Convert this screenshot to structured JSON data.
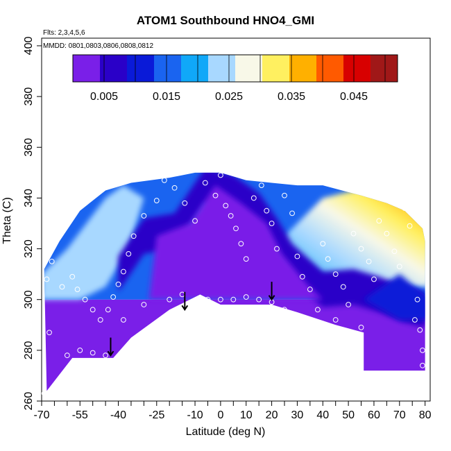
{
  "chart_data": {
    "type": "heatmap",
    "title": "ATOM1 Southbound HNO4_GMI",
    "flights_note": "Flts: 2,3,4,5,6",
    "dates_note": "MMDD: 0801,0803,0806,0808,0812",
    "xlabel": "Latitude (deg N)",
    "ylabel": "Theta (C)",
    "xlim": [
      -70,
      82
    ],
    "ylim": [
      260,
      403
    ],
    "x_tick_labels": [
      "-70",
      "-55",
      "-40",
      "-25",
      "-10",
      "0",
      "10",
      "20",
      "30",
      "40",
      "50",
      "60",
      "70",
      "80"
    ],
    "x_tick_values": [
      -70,
      -55,
      -40,
      -25,
      -10,
      0,
      10,
      20,
      30,
      40,
      50,
      60,
      70,
      80
    ],
    "x_minor_ticks": [
      -65,
      -60,
      -50,
      -45,
      -35,
      -30,
      -20,
      -15,
      -5,
      5,
      15,
      25,
      35,
      45,
      55,
      65,
      75
    ],
    "y_tick_labels": [
      "260",
      "280",
      "300",
      "320",
      "340",
      "360",
      "380",
      "400"
    ],
    "y_tick_values": [
      260,
      280,
      300,
      320,
      340,
      360,
      380,
      400
    ],
    "colorbar": {
      "range": [
        0,
        0.052
      ],
      "labels": [
        "0.005",
        "0.015",
        "0.025",
        "0.035",
        "0.045"
      ],
      "label_values": [
        0.005,
        0.015,
        0.025,
        0.035,
        0.045
      ],
      "break_step": 0.005,
      "colors": [
        "#7a1fe8",
        "#2a00c8",
        "#0a1ad8",
        "#1a64f0",
        "#10a8f8",
        "#a8d8ff",
        "#f8f8e8",
        "#fff060",
        "#ffb000",
        "#ff5a00",
        "#d80000",
        "#a01818"
      ]
    },
    "top_boundary": [
      [
        -69,
        312
      ],
      [
        -63,
        323
      ],
      [
        -55,
        335
      ],
      [
        -45,
        343
      ],
      [
        -35,
        346
      ],
      [
        -20,
        348
      ],
      [
        -10,
        350
      ],
      [
        0,
        350
      ],
      [
        10,
        347
      ],
      [
        20,
        346
      ],
      [
        30,
        345
      ],
      [
        40,
        345
      ],
      [
        55,
        341
      ],
      [
        65,
        338
      ],
      [
        72,
        335
      ],
      [
        79,
        328
      ],
      [
        80,
        323
      ]
    ],
    "bottom_boundary": [
      [
        80,
        272
      ],
      [
        56,
        272
      ],
      [
        56,
        287
      ],
      [
        45,
        290
      ],
      [
        30,
        295
      ],
      [
        20,
        298
      ],
      [
        0,
        298
      ],
      [
        -8,
        302
      ],
      [
        -20,
        296
      ],
      [
        -35,
        285
      ],
      [
        -42,
        277
      ],
      [
        -58,
        277
      ],
      [
        -68,
        264
      ]
    ],
    "core_trough_points": [
      [
        -40,
        310
      ],
      [
        -30,
        325
      ],
      [
        -18,
        327
      ],
      [
        -6,
        345
      ],
      [
        5,
        342
      ],
      [
        15,
        335
      ],
      [
        22,
        325
      ],
      [
        28,
        315
      ],
      [
        40,
        304
      ],
      [
        52,
        305
      ],
      [
        62,
        302
      ],
      [
        72,
        298
      ],
      [
        80,
        296
      ]
    ],
    "arrows": [
      [
        -43,
        285
      ],
      [
        -14,
        303
      ],
      [
        20,
        307
      ]
    ],
    "observations": [
      [
        -69,
        263
      ],
      [
        -67,
        287
      ],
      [
        -68,
        308
      ],
      [
        -66,
        315
      ],
      [
        -62,
        305
      ],
      [
        -58,
        309
      ],
      [
        -56,
        304
      ],
      [
        -53,
        300
      ],
      [
        -50,
        296
      ],
      [
        -47,
        292
      ],
      [
        -44,
        296
      ],
      [
        -42,
        301
      ],
      [
        -40,
        306
      ],
      [
        -38,
        311
      ],
      [
        -36,
        318
      ],
      [
        -34,
        325
      ],
      [
        -30,
        333
      ],
      [
        -25,
        339
      ],
      [
        -22,
        347
      ],
      [
        -18,
        344
      ],
      [
        -14,
        338
      ],
      [
        -10,
        331
      ],
      [
        -6,
        346
      ],
      [
        -2,
        341
      ],
      [
        0,
        349
      ],
      [
        2,
        337
      ],
      [
        4,
        333
      ],
      [
        6,
        328
      ],
      [
        8,
        322
      ],
      [
        10,
        316
      ],
      [
        13,
        340
      ],
      [
        16,
        345
      ],
      [
        18,
        335
      ],
      [
        20,
        330
      ],
      [
        22,
        320
      ],
      [
        25,
        341
      ],
      [
        28,
        334
      ],
      [
        30,
        317
      ],
      [
        32,
        309
      ],
      [
        35,
        304
      ],
      [
        38,
        296
      ],
      [
        40,
        322
      ],
      [
        42,
        316
      ],
      [
        45,
        310
      ],
      [
        48,
        305
      ],
      [
        50,
        298
      ],
      [
        52,
        326
      ],
      [
        55,
        320
      ],
      [
        58,
        315
      ],
      [
        60,
        308
      ],
      [
        62,
        331
      ],
      [
        65,
        326
      ],
      [
        68,
        319
      ],
      [
        70,
        313
      ],
      [
        72,
        336
      ],
      [
        74,
        329
      ],
      [
        76,
        292
      ],
      [
        77,
        300
      ],
      [
        78,
        288
      ],
      [
        79,
        280
      ],
      [
        79,
        274
      ],
      [
        -60,
        278
      ],
      [
        -55,
        280
      ],
      [
        -50,
        279
      ],
      [
        -45,
        278
      ],
      [
        -38,
        292
      ],
      [
        -30,
        298
      ],
      [
        -20,
        300
      ],
      [
        -15,
        302
      ],
      [
        -5,
        300
      ],
      [
        0,
        300
      ],
      [
        5,
        300
      ],
      [
        10,
        301
      ],
      [
        15,
        300
      ],
      [
        20,
        299
      ],
      [
        25,
        296
      ],
      [
        30,
        293
      ],
      [
        45,
        292
      ],
      [
        55,
        289
      ]
    ]
  }
}
